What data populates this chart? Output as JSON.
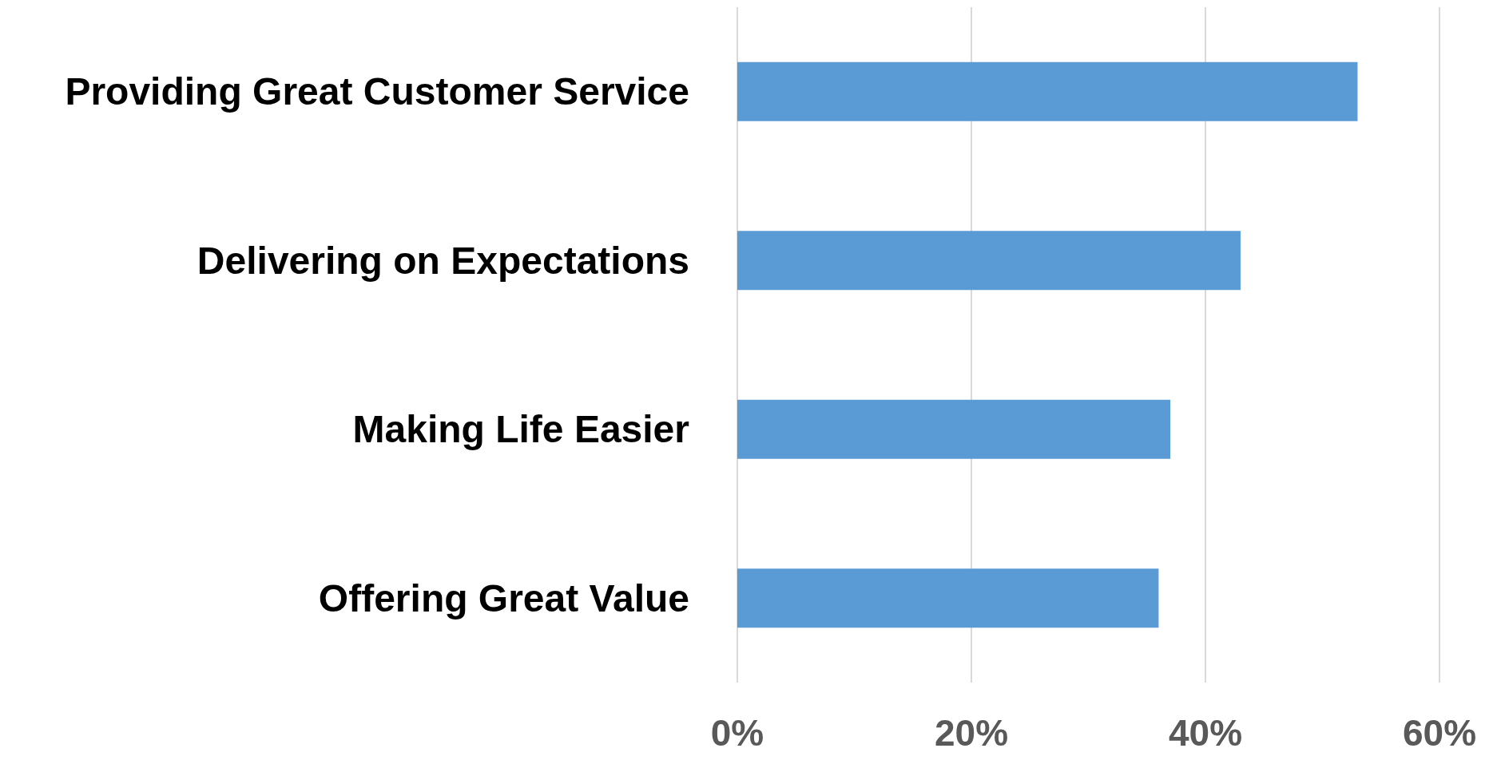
{
  "chart_data": {
    "type": "bar",
    "orientation": "horizontal",
    "categories": [
      "Providing Great Customer Service",
      "Delivering on Expectations",
      "Making Life Easier",
      "Offering Great Value"
    ],
    "values": [
      53,
      43,
      37,
      36
    ],
    "color": "#5b9bd5",
    "xlim": [
      0,
      60
    ],
    "xticks": [
      {
        "value": 0,
        "label": "0%"
      },
      {
        "value": 20,
        "label": "20%"
      },
      {
        "value": 40,
        "label": "40%"
      },
      {
        "value": 60,
        "label": "60%"
      }
    ],
    "grid": "x"
  }
}
